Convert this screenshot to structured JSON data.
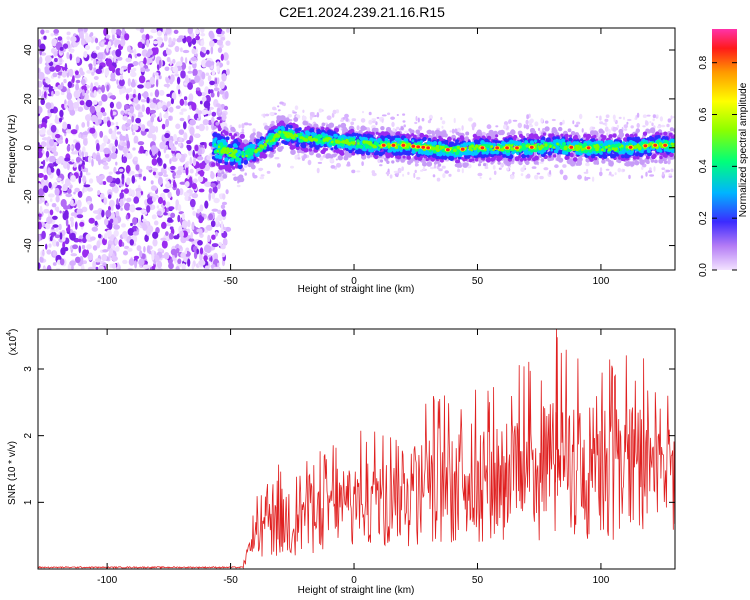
{
  "figure": {
    "title": "C2E1.2024.239.21.16.R15"
  },
  "chart_data": [
    {
      "type": "heatmap",
      "xlabel": "Height of straight line (km)",
      "ylabel": "Frequency (Hz)",
      "xlim": [
        -128,
        130
      ],
      "ylim": [
        -50,
        49
      ],
      "xticks": [
        -100,
        -50,
        0,
        50,
        100
      ],
      "yticks": [
        -40,
        -20,
        0,
        20,
        40
      ],
      "ridge": {
        "x": [
          -57,
          -55,
          -50,
          -45,
          -40,
          -35,
          -30,
          -25,
          -20,
          -10,
          0,
          10,
          20,
          30,
          40,
          50,
          60,
          70,
          80,
          90,
          100,
          110,
          120,
          130
        ],
        "center_hz": [
          0,
          0,
          -2,
          -3,
          -1,
          2,
          6,
          5,
          4,
          3,
          2,
          1,
          1,
          0,
          -1,
          0,
          0,
          0,
          1,
          0,
          0,
          0,
          1,
          1
        ]
      },
      "noise_region_x": [
        -128,
        -53
      ],
      "colorbar": {
        "label": "Normalized spectral amplitude",
        "range": [
          0.0,
          0.93
        ],
        "ticks": [
          "0.0",
          "0.2",
          "0.4",
          "0.6",
          "0.8"
        ],
        "colors": [
          "#f0d6ff",
          "#9a2cf0",
          "#2b2bff",
          "#00c8ff",
          "#00ff80",
          "#7fff00",
          "#ffff00",
          "#ff9a00",
          "#ff2020",
          "#ff3399"
        ]
      },
      "grid": false
    },
    {
      "type": "line",
      "xlabel": "Height of straight line (km)",
      "ylabel": "SNR (10 * v/v)",
      "yscale_label": "(x10",
      "yscale_exp": "4",
      "xlim": [
        -128,
        130
      ],
      "ylim": [
        0,
        3.6
      ],
      "xticks": [
        -100,
        -50,
        0,
        50,
        100
      ],
      "yticks": [
        1,
        2,
        3
      ],
      "series": [
        {
          "color": "#e02020",
          "envelope": {
            "x": [
              -128,
              -45,
              -42,
              -40,
              -30,
              -20,
              -10,
              0,
              10,
              20,
              30,
              40,
              50,
              60,
              70,
              80,
              90,
              100,
              110,
              120,
              130
            ],
            "mean": [
              0.02,
              0.03,
              0.3,
              0.5,
              0.6,
              0.7,
              0.85,
              0.9,
              1.05,
              1.1,
              1.2,
              1.25,
              1.3,
              1.35,
              1.35,
              1.4,
              1.4,
              1.45,
              1.45,
              1.4,
              1.4
            ],
            "max": [
              0.03,
              0.05,
              0.6,
              1.1,
              1.6,
              1.7,
              1.9,
              2.0,
              2.3,
              2.4,
              2.6,
              2.7,
              2.9,
              3.0,
              3.1,
              3.6,
              3.2,
              3.3,
              3.3,
              3.2,
              2.6
            ]
          }
        }
      ],
      "grid": false
    }
  ]
}
